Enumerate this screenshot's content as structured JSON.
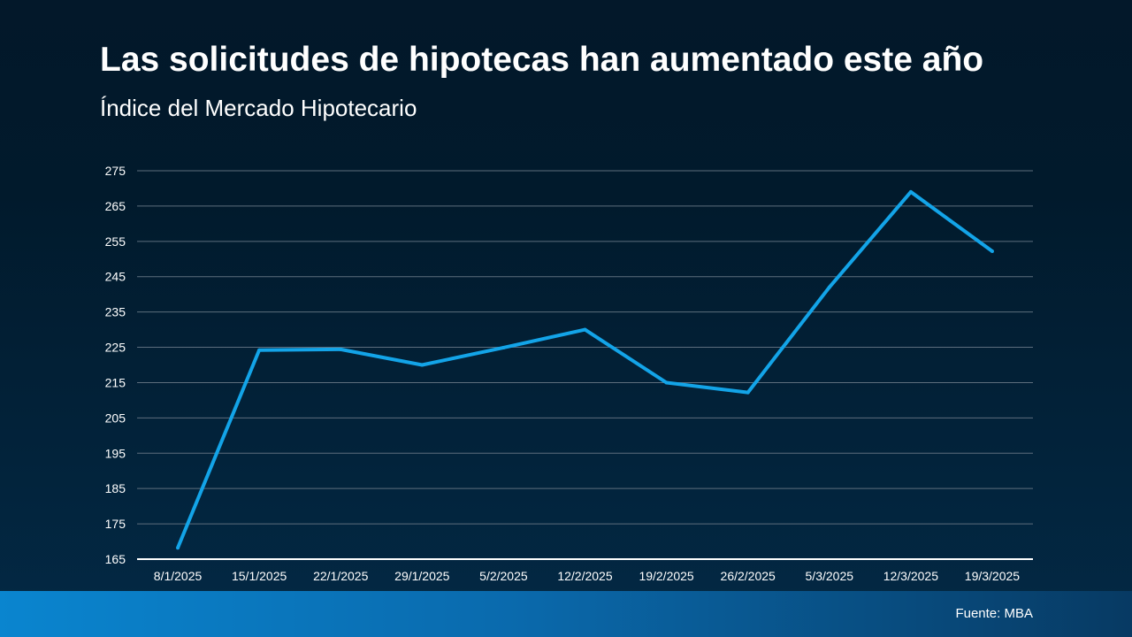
{
  "header": {
    "title": "Las solicitudes de hipotecas han aumentado este año",
    "subtitle": "Índice del Mercado Hipotecario"
  },
  "footer": {
    "source": "Fuente: MBA"
  },
  "colors": {
    "line": "#13a4e8",
    "grid": "#5d6e7d",
    "axis": "#ffffff"
  },
  "chart_data": {
    "type": "line",
    "title": "Las solicitudes de hipotecas han aumentado este año",
    "subtitle": "Índice del Mercado Hipotecario",
    "xlabel": "",
    "ylabel": "",
    "categories": [
      "8/1/2025",
      "15/1/2025",
      "22/1/2025",
      "29/1/2025",
      "5/2/2025",
      "12/2/2025",
      "19/2/2025",
      "26/2/2025",
      "5/3/2025",
      "12/3/2025",
      "19/3/2025"
    ],
    "series": [
      {
        "name": "Índice del Mercado Hipotecario",
        "values": [
          168.2,
          224.2,
          224.4,
          220.0,
          224.9,
          230.0,
          215.0,
          212.2,
          242.0,
          269.0,
          252.2
        ]
      }
    ],
    "ylim": [
      165,
      275
    ],
    "yticks": [
      165,
      175,
      185,
      195,
      205,
      215,
      225,
      235,
      245,
      255,
      265,
      275
    ],
    "grid": true,
    "legend": "none"
  }
}
